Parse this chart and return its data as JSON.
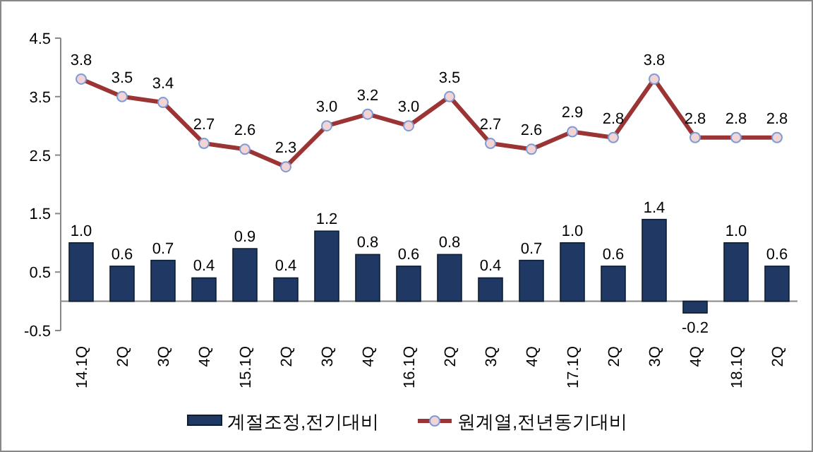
{
  "chart_data": {
    "type": "bar",
    "categories": [
      "14.1Q",
      "2Q",
      "3Q",
      "4Q",
      "15.1Q",
      "2Q",
      "3Q",
      "4Q",
      "16.1Q",
      "2Q",
      "3Q",
      "4Q",
      "17.1Q",
      "2Q",
      "3Q",
      "4Q",
      "18.1Q",
      "2Q"
    ],
    "series": [
      {
        "name": "계절조정,전기대비",
        "color": "#1f3864",
        "values": [
          1.0,
          0.6,
          0.7,
          0.4,
          0.9,
          0.4,
          1.2,
          0.8,
          0.6,
          0.8,
          0.4,
          0.7,
          1.0,
          0.6,
          1.4,
          -0.2,
          1.0,
          0.6
        ],
        "value_labels": [
          "1.0",
          "0.6",
          "0.7",
          "0.4",
          "0.9",
          "0.4",
          "1.2",
          "0.8",
          "0.6",
          "0.8",
          "0.4",
          "0.7",
          "1.0",
          "0.6",
          "1.4",
          "-0.2",
          "1.0",
          "0.6"
        ]
      },
      {
        "name": "원계열,전년동기대비",
        "type": "line",
        "color": "#9b3535",
        "marker": "circle",
        "line_style": "solid",
        "values": [
          3.8,
          3.5,
          3.4,
          2.7,
          2.6,
          2.3,
          3.0,
          3.2,
          3.0,
          3.5,
          2.7,
          2.6,
          2.9,
          2.8,
          3.8,
          2.8,
          2.8,
          2.8
        ],
        "value_labels": [
          "3.8",
          "3.5",
          "3.4",
          "2.7",
          "2.6",
          "2.3",
          "3.0",
          "3.2",
          "3.0",
          "3.5",
          "2.7",
          "2.6",
          "2.9",
          "2.8",
          "3.8",
          "2.8",
          "2.8",
          "2.8"
        ]
      }
    ],
    "ylim": [
      -0.5,
      4.5
    ],
    "yticks": [
      -0.5,
      0.5,
      1.5,
      2.5,
      3.5,
      4.5
    ],
    "grid": false,
    "legend": "bottom"
  }
}
